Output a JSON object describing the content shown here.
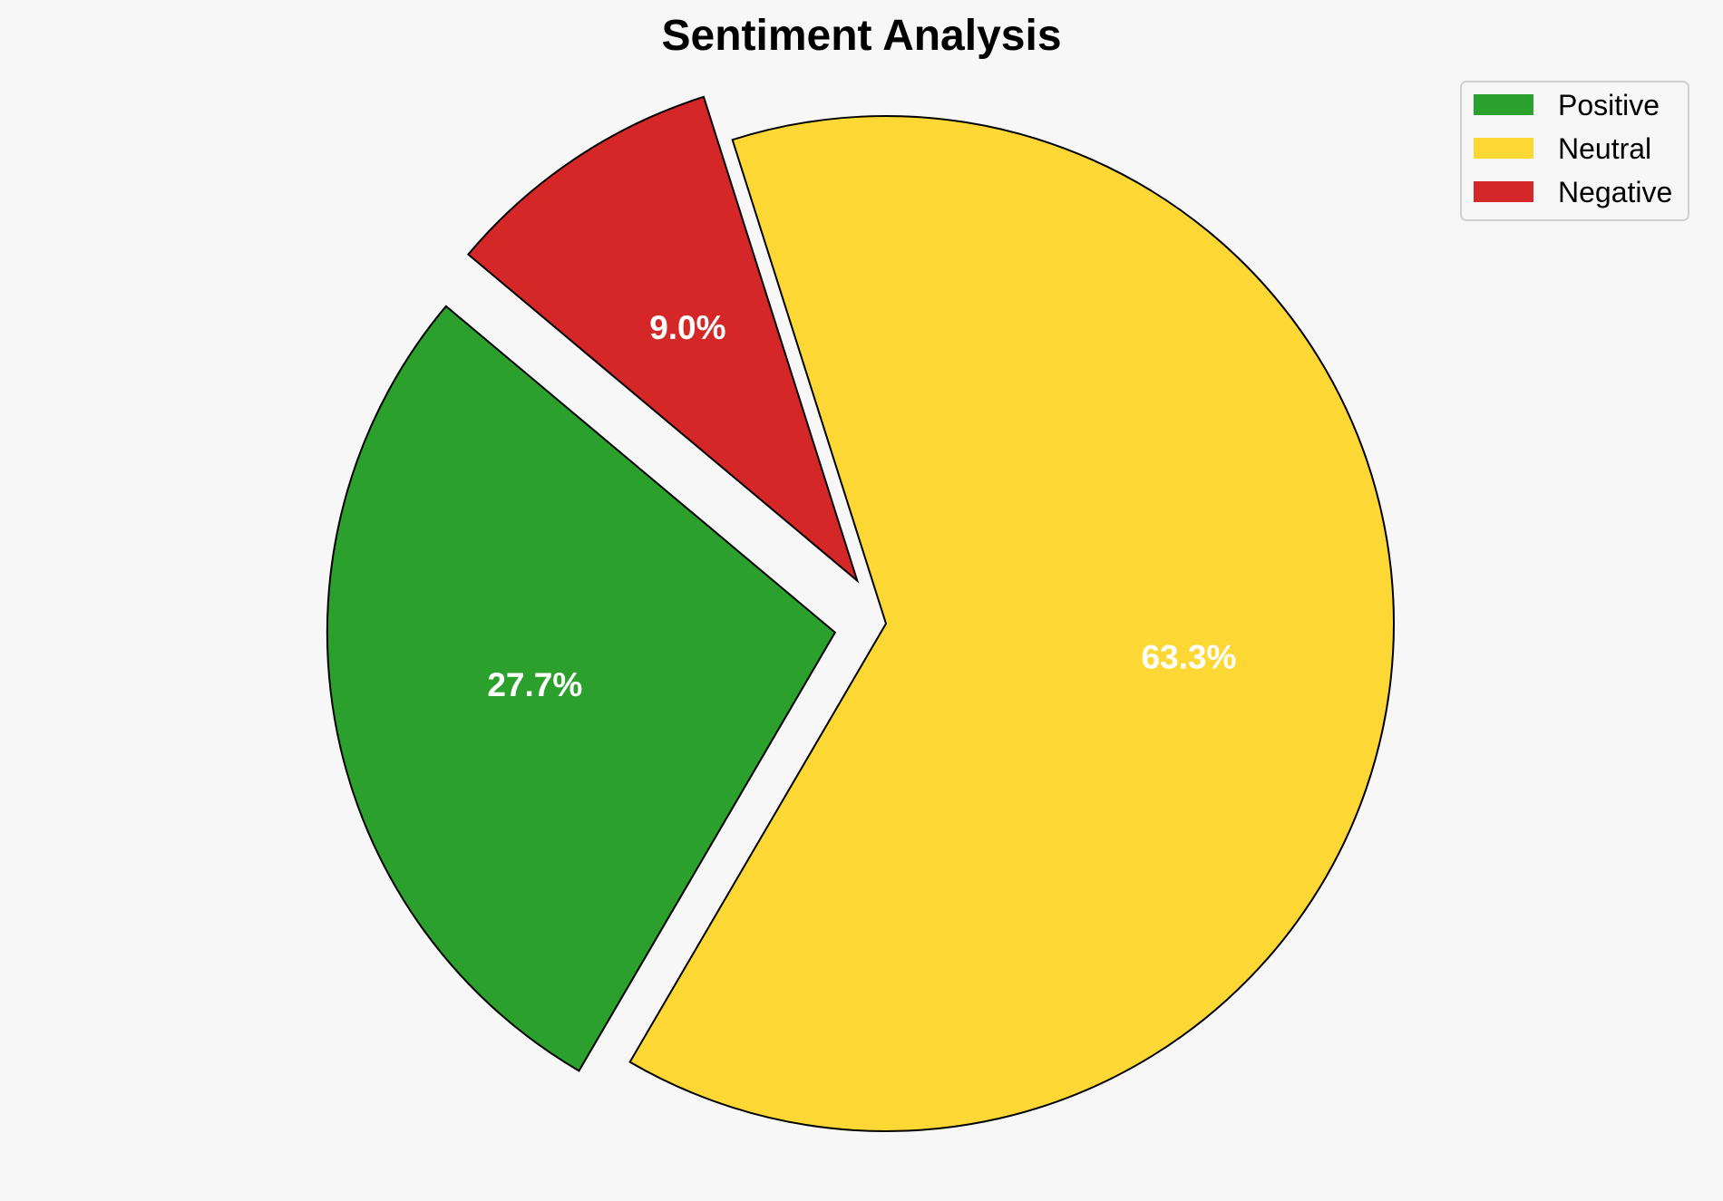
{
  "chart_data": {
    "type": "pie",
    "title": "Sentiment Analysis",
    "slices": [
      {
        "label": "Positive",
        "value": 27.7,
        "display": "27.7%",
        "color": "#2ca02c",
        "exploded": true
      },
      {
        "label": "Neutral",
        "value": 63.3,
        "display": "63.3%",
        "color": "#fdd835",
        "exploded": false
      },
      {
        "label": "Negative",
        "value": 9.0,
        "display": "9.0%",
        "color": "#d62728",
        "exploded": true
      }
    ],
    "start_angle_deg": 140,
    "direction": "counterclockwise",
    "legend_position": "top-right"
  }
}
